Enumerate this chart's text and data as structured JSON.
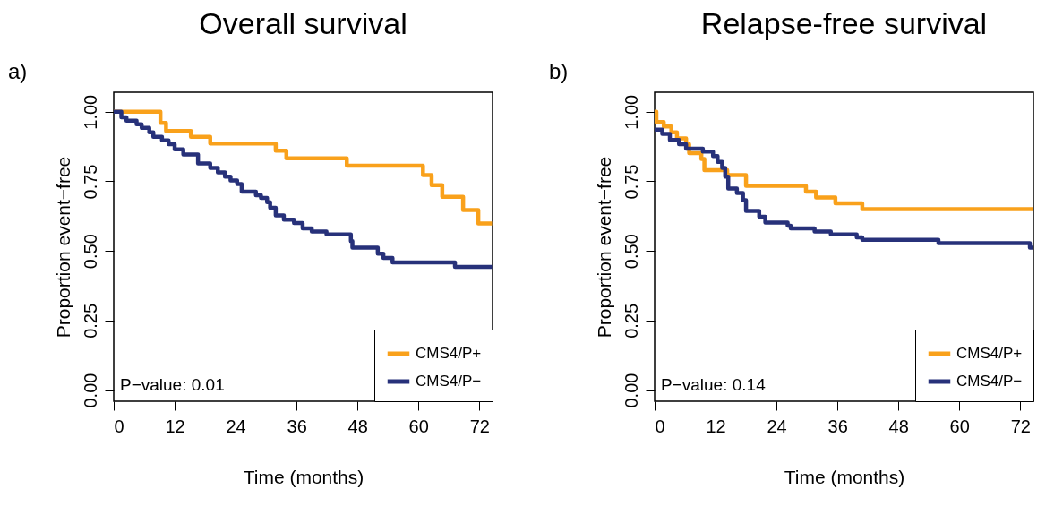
{
  "chart_data": [
    {
      "type": "step",
      "title": "Overall survival",
      "xlabel": "Time (months)",
      "ylabel": "Proportion event−free",
      "xlim": [
        0,
        74.6
      ],
      "ylim": [
        -0.04,
        1.07
      ],
      "xticks": [
        0,
        12,
        24,
        36,
        48,
        60,
        72
      ],
      "yticks": [
        {
          "value": 0,
          "label": "0.00"
        },
        {
          "value": 0.25,
          "label": "0.25"
        },
        {
          "value": 0.5,
          "label": "0.50"
        },
        {
          "value": 0.75,
          "label": "0.75"
        },
        {
          "value": 1,
          "label": "1.00"
        }
      ],
      "legend": "bottom right",
      "annotations": [
        "a)",
        "P−value: 0.01"
      ],
      "series": [
        {
          "name": "CMS4/P+",
          "color": "#f9a11b",
          "x": [
            0,
            9.2,
            10.3,
            15.2,
            19.0,
            31.9,
            34.0,
            45.9,
            60.9,
            62.6,
            64.7,
            68.8,
            71.8,
            74.5
          ],
          "values": [
            1.0,
            0.96,
            0.931,
            0.91,
            0.886,
            0.86,
            0.833,
            0.806,
            0.772,
            0.736,
            0.694,
            0.647,
            0.599,
            0.599
          ]
        },
        {
          "name": "CMS4/P−",
          "color": "#27317a",
          "x": [
            0,
            1.5,
            2.5,
            4.5,
            5.5,
            7.0,
            7.8,
            9.5,
            10.8,
            12.0,
            13.7,
            16.6,
            19.0,
            20.5,
            21.9,
            23.0,
            24.3,
            25.2,
            28.0,
            29.0,
            30.2,
            30.8,
            31.9,
            33.5,
            35.5,
            37.2,
            39.0,
            41.9,
            46.7,
            47.0,
            52.0,
            53.1,
            54.9,
            67.2,
            74.5
          ],
          "values": [
            1.0,
            0.98,
            0.968,
            0.955,
            0.942,
            0.926,
            0.91,
            0.897,
            0.883,
            0.865,
            0.846,
            0.814,
            0.798,
            0.782,
            0.767,
            0.753,
            0.74,
            0.713,
            0.7,
            0.69,
            0.675,
            0.655,
            0.628,
            0.612,
            0.6,
            0.581,
            0.57,
            0.559,
            0.535,
            0.512,
            0.49,
            0.475,
            0.459,
            0.443,
            0.443
          ]
        }
      ]
    },
    {
      "type": "step",
      "title": "Relapse-free survival",
      "xlabel": "Time (months)",
      "ylabel": "Proportion event−free",
      "xlim": [
        0,
        74.6
      ],
      "ylim": [
        -0.04,
        1.07
      ],
      "xticks": [
        0,
        12,
        24,
        36,
        48,
        60,
        72
      ],
      "yticks": [
        {
          "value": 0,
          "label": "0.00"
        },
        {
          "value": 0.25,
          "label": "0.25"
        },
        {
          "value": 0.5,
          "label": "0.50"
        },
        {
          "value": 0.75,
          "label": "0.75"
        },
        {
          "value": 1,
          "label": "1.00"
        }
      ],
      "legend": "bottom right",
      "annotations": [
        "b)",
        "P−value: 0.14"
      ],
      "series": [
        {
          "name": "CMS4/P+",
          "color": "#f9a11b",
          "x": [
            0,
            0.35,
            1.8,
            3.3,
            4.4,
            6.2,
            6.8,
            9.2,
            9.8,
            14.3,
            18.0,
            29.8,
            31.8,
            35.6,
            40.9,
            74.5
          ],
          "values": [
            1.0,
            0.963,
            0.947,
            0.926,
            0.904,
            0.883,
            0.851,
            0.83,
            0.79,
            0.772,
            0.734,
            0.713,
            0.692,
            0.671,
            0.65,
            0.65
          ]
        },
        {
          "name": "CMS4/P−",
          "color": "#27317a",
          "x": [
            0,
            1.5,
            3.0,
            4.8,
            6.2,
            9.5,
            11.5,
            12.4,
            13.3,
            13.9,
            14.5,
            16.2,
            17.4,
            18.0,
            20.6,
            21.8,
            26.2,
            26.8,
            31.5,
            34.7,
            39.8,
            40.9,
            55.9,
            73.9,
            74.5
          ],
          "values": [
            0.936,
            0.92,
            0.899,
            0.883,
            0.867,
            0.857,
            0.841,
            0.82,
            0.798,
            0.767,
            0.724,
            0.708,
            0.682,
            0.644,
            0.623,
            0.602,
            0.591,
            0.581,
            0.57,
            0.559,
            0.549,
            0.54,
            0.528,
            0.512,
            0.512
          ]
        }
      ]
    }
  ]
}
